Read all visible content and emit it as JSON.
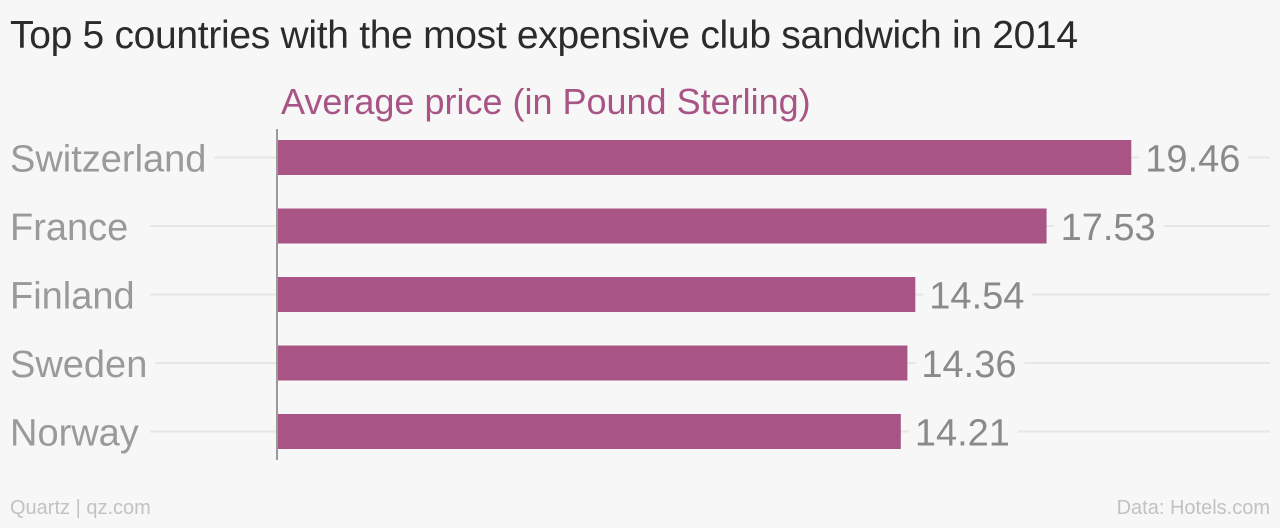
{
  "title": "Top 5 countries with the most expensive club sandwich in 2014",
  "footer": {
    "credit": "Quartz | qz.com",
    "source": "Data: Hotels.com"
  },
  "colors": {
    "bar": "#a85585",
    "series_label": "#a85585",
    "category_label": "#9a9a9a",
    "value_label": "#8a8a8a",
    "gridline": "#e6e6e6",
    "axis": "#9a9a9a"
  },
  "chart_data": {
    "type": "bar",
    "orientation": "horizontal",
    "categories": [
      "Switzerland",
      "France",
      "Finland",
      "Sweden",
      "Norway"
    ],
    "series": [
      {
        "name": "Average price (in Pound Sterling)",
        "values": [
          19.46,
          17.53,
          14.54,
          14.36,
          14.21
        ]
      }
    ],
    "data_labels": [
      "19.46",
      "17.53",
      "14.54",
      "14.36",
      "14.21"
    ],
    "xlim": [
      0,
      20
    ],
    "grid": true,
    "legend": "top"
  }
}
